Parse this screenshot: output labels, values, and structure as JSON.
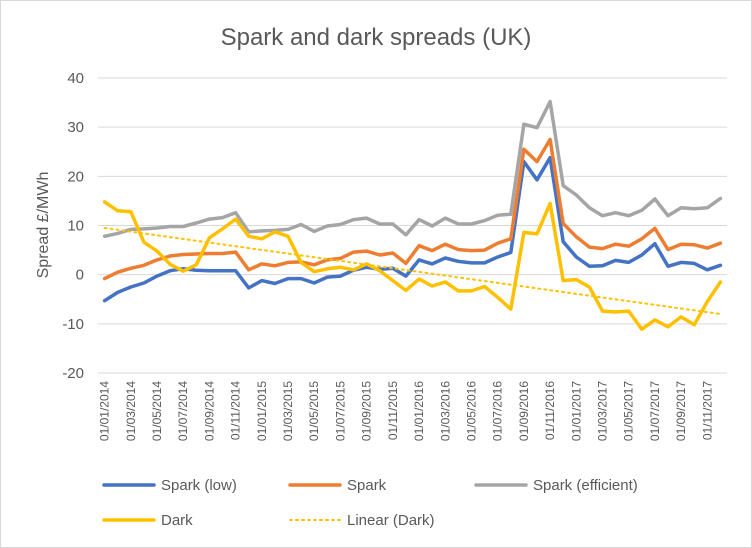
{
  "chart_data": {
    "type": "line",
    "title": "Spark and dark spreads (UK)",
    "ylabel": "Spread £/MWh",
    "xlabel": "",
    "ylim": [
      -20,
      40
    ],
    "yticks": [
      40,
      30,
      20,
      10,
      0,
      -10,
      -20
    ],
    "grid": true,
    "legend_position": "bottom",
    "x": [
      "01/01/2014",
      "01/02/2014",
      "01/03/2014",
      "01/04/2014",
      "01/05/2014",
      "01/06/2014",
      "01/07/2014",
      "01/08/2014",
      "01/09/2014",
      "01/10/2014",
      "01/11/2014",
      "01/12/2014",
      "01/01/2015",
      "01/02/2015",
      "01/03/2015",
      "01/04/2015",
      "01/05/2015",
      "01/06/2015",
      "01/07/2015",
      "01/08/2015",
      "01/09/2015",
      "01/10/2015",
      "01/11/2015",
      "01/12/2015",
      "01/01/2016",
      "01/02/2016",
      "01/03/2016",
      "01/04/2016",
      "01/05/2016",
      "01/06/2016",
      "01/07/2016",
      "01/08/2016",
      "01/09/2016",
      "01/10/2016",
      "01/11/2016",
      "01/12/2016",
      "01/01/2017",
      "01/02/2017",
      "01/03/2017",
      "01/04/2017",
      "01/05/2017",
      "01/06/2017",
      "01/07/2017",
      "01/08/2017",
      "01/09/2017",
      "01/10/2017",
      "01/11/2017",
      "01/12/2017"
    ],
    "xtick_labels": [
      "01/01/2014",
      "01/03/2014",
      "01/05/2014",
      "01/07/2014",
      "01/09/2014",
      "01/11/2014",
      "01/01/2015",
      "01/03/2015",
      "01/05/2015",
      "01/07/2015",
      "01/09/2015",
      "01/11/2015",
      "01/01/2016",
      "01/03/2016",
      "01/05/2016",
      "01/07/2016",
      "01/09/2016",
      "01/11/2016",
      "01/01/2017",
      "01/03/2017",
      "01/05/2017",
      "01/07/2017",
      "01/09/2017",
      "01/11/2017"
    ],
    "series": [
      {
        "name": "Spark (low)",
        "color": "#4472c4",
        "style": "solid",
        "values": [
          -5.3,
          -3.6,
          -2.5,
          -1.7,
          -0.3,
          0.8,
          1.2,
          0.9,
          0.8,
          0.8,
          0.8,
          -2.7,
          -1.2,
          -1.8,
          -0.8,
          -0.8,
          -1.7,
          -0.5,
          -0.3,
          0.9,
          1.5,
          1.1,
          1.3,
          -0.3,
          3.0,
          2.2,
          3.4,
          2.7,
          2.4,
          2.4,
          3.6,
          4.5,
          23.0,
          19.3,
          23.8,
          6.7,
          3.6,
          1.7,
          1.8,
          2.9,
          2.5,
          4.0,
          6.3,
          1.7,
          2.5,
          2.3,
          1.0,
          1.9
        ]
      },
      {
        "name": "Spark",
        "color": "#ed7d31",
        "style": "solid",
        "values": [
          -0.8,
          0.5,
          1.3,
          1.9,
          3.0,
          3.8,
          4.1,
          4.2,
          4.3,
          4.3,
          4.6,
          1.0,
          2.2,
          1.8,
          2.5,
          2.6,
          2.0,
          3.0,
          3.3,
          4.6,
          4.8,
          4.0,
          4.4,
          2.3,
          5.9,
          4.9,
          6.2,
          5.1,
          4.9,
          5.0,
          6.4,
          7.3,
          25.5,
          23.0,
          27.5,
          10.4,
          7.7,
          5.6,
          5.3,
          6.2,
          5.8,
          7.3,
          9.4,
          5.1,
          6.2,
          6.1,
          5.4,
          6.4
        ]
      },
      {
        "name": "Spark (efficient)",
        "color": "#a5a5a5",
        "style": "solid",
        "values": [
          7.8,
          8.4,
          9.2,
          9.3,
          9.5,
          9.8,
          9.8,
          10.5,
          11.3,
          11.6,
          12.6,
          8.7,
          8.9,
          9.0,
          9.2,
          10.2,
          8.8,
          9.9,
          10.2,
          11.2,
          11.5,
          10.3,
          10.3,
          8.1,
          11.2,
          9.9,
          11.5,
          10.3,
          10.3,
          11.0,
          12.1,
          12.3,
          30.6,
          29.9,
          35.2,
          18.1,
          16.2,
          13.6,
          12.0,
          12.6,
          12.0,
          13.1,
          15.4,
          12.0,
          13.6,
          13.4,
          13.6,
          15.5
        ]
      },
      {
        "name": "Dark",
        "color": "#ffc000",
        "style": "solid",
        "values": [
          14.8,
          13.0,
          12.8,
          6.6,
          4.8,
          2.1,
          0.7,
          2.0,
          7.5,
          9.3,
          11.3,
          7.8,
          7.3,
          8.7,
          7.8,
          2.5,
          0.6,
          1.2,
          1.5,
          1.0,
          2.2,
          0.8,
          -1.2,
          -3.2,
          -0.9,
          -2.3,
          -1.5,
          -3.3,
          -3.3,
          -2.4,
          -4.6,
          -7.0,
          8.6,
          8.3,
          14.5,
          -1.2,
          -1.0,
          -2.5,
          -7.4,
          -7.6,
          -7.4,
          -11.1,
          -9.2,
          -10.6,
          -8.6,
          -10.2,
          -5.5,
          -1.5
        ]
      },
      {
        "name": "Linear (Dark)",
        "color": "#ffc000",
        "style": "dotted",
        "trendline": true,
        "values_endpoints": [
          9.5,
          -8.0
        ]
      }
    ]
  },
  "legend": [
    {
      "label": "Spark (low)",
      "color": "#4472c4",
      "style": "solid"
    },
    {
      "label": "Spark",
      "color": "#ed7d31",
      "style": "solid"
    },
    {
      "label": "Spark (efficient)",
      "color": "#a5a5a5",
      "style": "solid"
    },
    {
      "label": "Dark",
      "color": "#ffc000",
      "style": "solid"
    },
    {
      "label": "Linear (Dark)",
      "color": "#ffc000",
      "style": "dotted"
    }
  ]
}
